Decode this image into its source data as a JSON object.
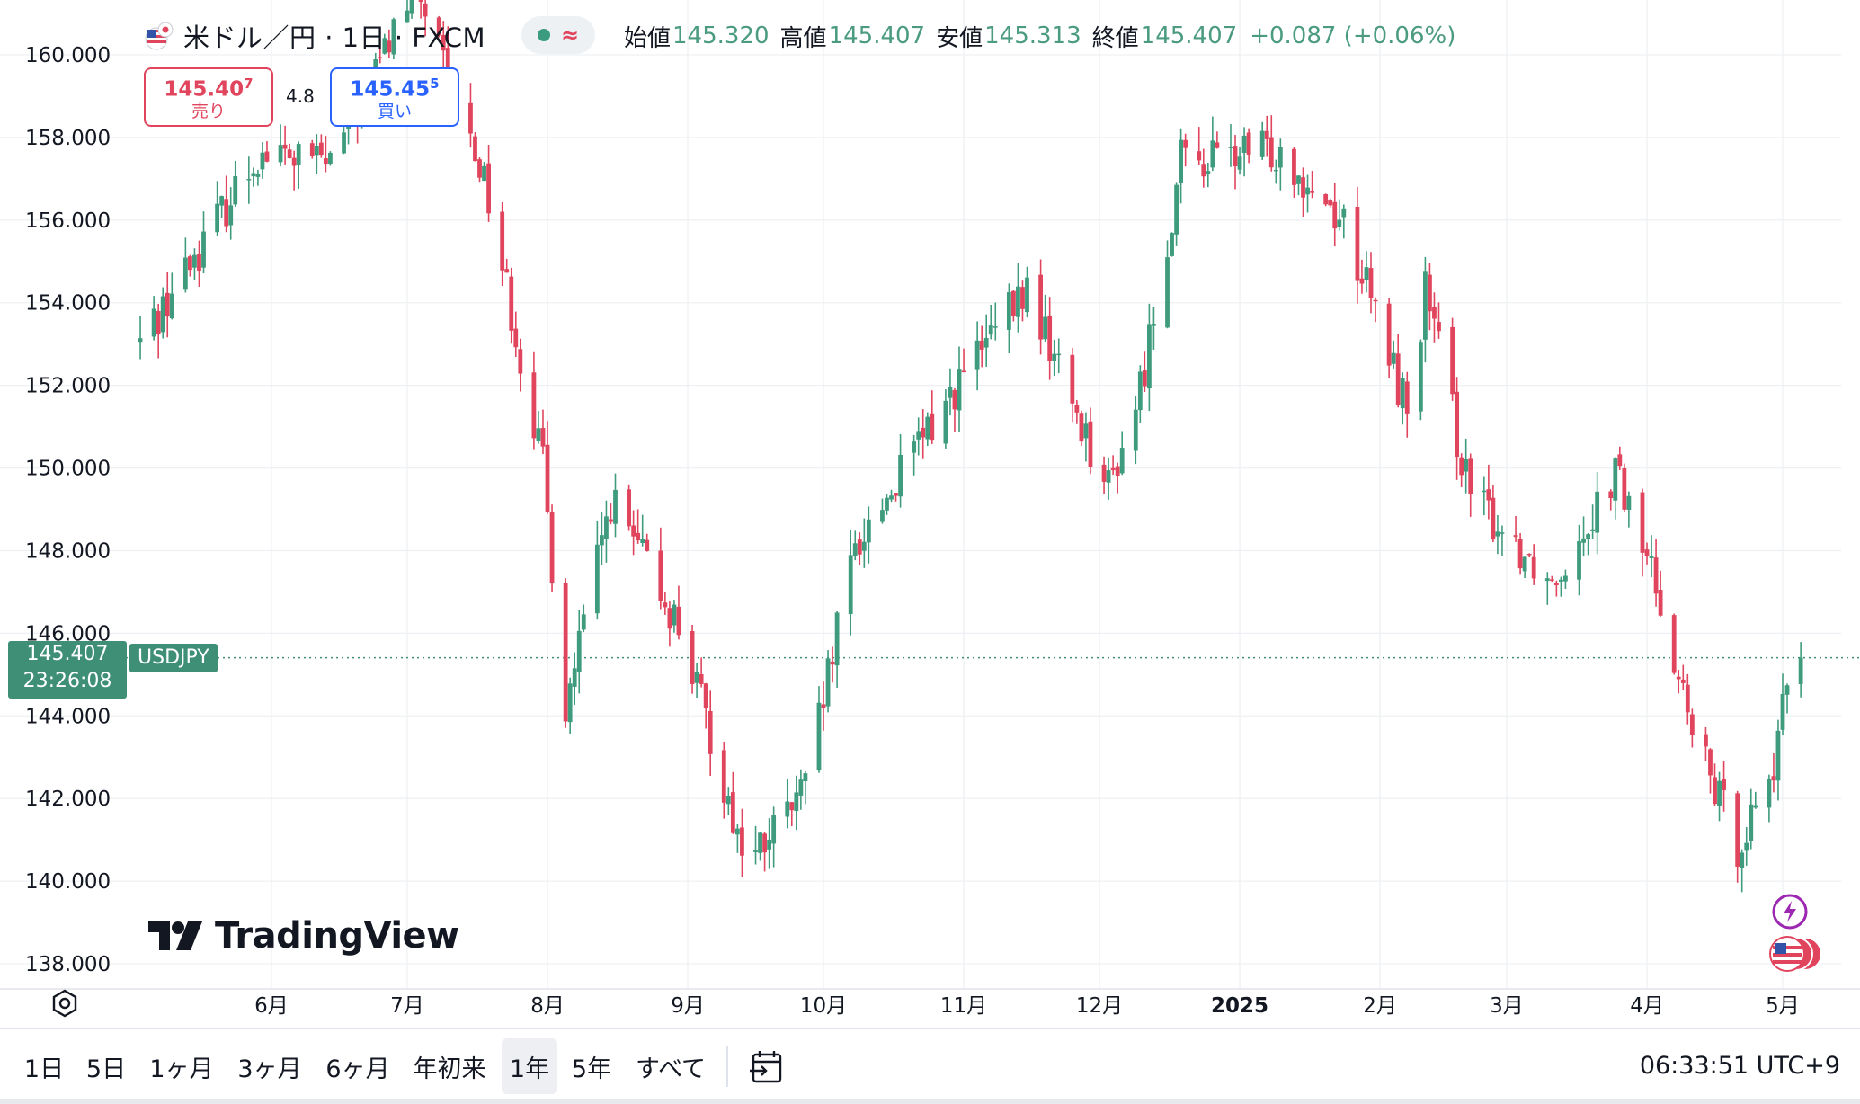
{
  "header": {
    "title": "米ドル／円 · 1日 · FXCM",
    "ohlc": [
      {
        "label": "始値",
        "value": "145.320"
      },
      {
        "label": "高値",
        "value": "145.407"
      },
      {
        "label": "安値",
        "value": "145.313"
      },
      {
        "label": "終値",
        "value": "145.407"
      }
    ],
    "change": "+0.087 (+0.06%)"
  },
  "trade": {
    "sell_price": "145.40",
    "sell_price_sup": "7",
    "sell_label": "売り",
    "spread": "4.8",
    "buy_price": "145.45",
    "buy_price_sup": "5",
    "buy_label": "買い"
  },
  "price_tag": {
    "price": "145.407",
    "countdown": "23:26:08",
    "symbol": "USDJPY"
  },
  "logo": {
    "text": "TradingView"
  },
  "toolbar": {
    "ranges": [
      {
        "label": "1日",
        "active": false
      },
      {
        "label": "5日",
        "active": false
      },
      {
        "label": "1ヶ月",
        "active": false
      },
      {
        "label": "3ヶ月",
        "active": false
      },
      {
        "label": "6ヶ月",
        "active": false
      },
      {
        "label": "年初来",
        "active": false
      },
      {
        "label": "1年",
        "active": true
      },
      {
        "label": "5年",
        "active": false
      },
      {
        "label": "すべて",
        "active": false
      }
    ],
    "clock": "06:33:51 UTC+9"
  },
  "colors": {
    "up": "#3f9b7d",
    "down": "#e0455d",
    "grid": "#eef0f3",
    "price_line": "#3f8f76"
  },
  "chart_data": {
    "type": "candlestick",
    "symbol": "USDJPY",
    "interval": "1日",
    "y_ticks": [
      "160.000",
      "158.000",
      "156.000",
      "154.000",
      "152.000",
      "150.000",
      "148.000",
      "146.000",
      "144.000",
      "142.000",
      "140.000",
      "138.000"
    ],
    "ylim": [
      137.9,
      160.6
    ],
    "x_ticks": [
      {
        "label": "6月",
        "date": "2024-06-01"
      },
      {
        "label": "7月",
        "date": "2024-07-01"
      },
      {
        "label": "8月",
        "date": "2024-08-01"
      },
      {
        "label": "9月",
        "date": "2024-09-01"
      },
      {
        "label": "10月",
        "date": "2024-10-01"
      },
      {
        "label": "11月",
        "date": "2024-11-01"
      },
      {
        "label": "12月",
        "date": "2024-12-01"
      },
      {
        "label": "2025",
        "date": "2025-01-01",
        "bold": true
      },
      {
        "label": "2月",
        "date": "2025-02-01"
      },
      {
        "label": "3月",
        "date": "2025-03-01"
      },
      {
        "label": "4月",
        "date": "2025-04-01"
      },
      {
        "label": "5月",
        "date": "2025-05-01"
      }
    ],
    "last_price": 145.407,
    "grid": true,
    "key_points": [
      {
        "date": "2024-05-03",
        "close": 153.05
      },
      {
        "date": "2024-05-29",
        "close": 157.6
      },
      {
        "date": "2024-06-14",
        "close": 157.4
      },
      {
        "date": "2024-07-03",
        "close": 161.7
      },
      {
        "date": "2024-07-11",
        "close": 159.0
      },
      {
        "date": "2024-07-18",
        "close": 157.1
      },
      {
        "date": "2024-07-31",
        "close": 150.0
      },
      {
        "date": "2024-08-05",
        "close": 144.2
      },
      {
        "date": "2024-08-15",
        "close": 149.2
      },
      {
        "date": "2024-08-30",
        "close": 146.2
      },
      {
        "date": "2024-09-13",
        "close": 140.8
      },
      {
        "date": "2024-09-16",
        "close": 140.6
      },
      {
        "date": "2024-09-27",
        "close": 142.2
      },
      {
        "date": "2024-10-08",
        "close": 148.1
      },
      {
        "date": "2024-10-31",
        "close": 152.1
      },
      {
        "date": "2024-11-15",
        "close": 154.3
      },
      {
        "date": "2024-12-03",
        "close": 149.5
      },
      {
        "date": "2024-12-10",
        "close": 151.9
      },
      {
        "date": "2024-12-19",
        "close": 157.4
      },
      {
        "date": "2025-01-10",
        "close": 157.7
      },
      {
        "date": "2025-01-24",
        "close": 156.0
      },
      {
        "date": "2025-02-07",
        "close": 151.4
      },
      {
        "date": "2025-02-11",
        "close": 154.3
      },
      {
        "date": "2025-02-21",
        "close": 149.3
      },
      {
        "date": "2025-03-11",
        "close": 147.3
      },
      {
        "date": "2025-03-25",
        "close": 149.9
      },
      {
        "date": "2025-04-04",
        "close": 146.9
      },
      {
        "date": "2025-04-11",
        "close": 143.5
      },
      {
        "date": "2025-04-21",
        "close": 140.9
      },
      {
        "date": "2025-04-30",
        "close": 143.1
      },
      {
        "date": "2025-05-02",
        "close": 144.9
      },
      {
        "date": "2025-05-05",
        "close": 145.407
      }
    ]
  }
}
